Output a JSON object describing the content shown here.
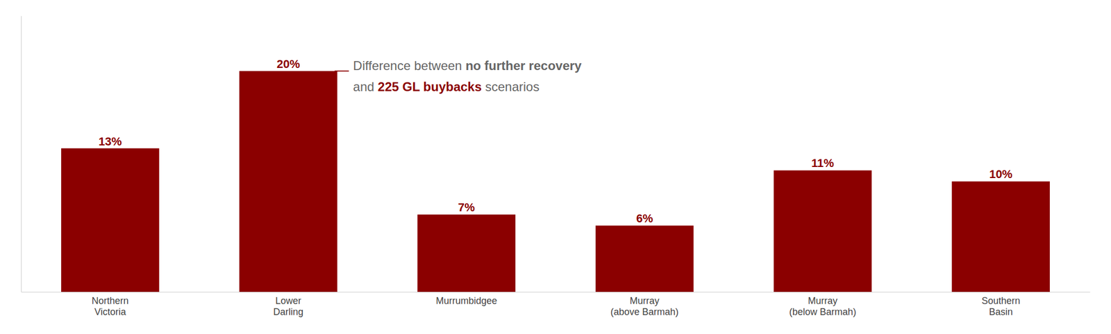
{
  "chart_data": {
    "type": "bar",
    "categories": [
      "Northern\nVictoria",
      "Lower\nDarling",
      "Murrumbidgee",
      "Murray\n(above Barmah)",
      "Murray\n(below Barmah)",
      "Southern\nBasin"
    ],
    "values": [
      13,
      20,
      7,
      6,
      11,
      10
    ],
    "value_labels": [
      "13%",
      "20%",
      "7%",
      "6%",
      "11%",
      "10%"
    ],
    "color": "#8B0000",
    "ylim": [
      0,
      25
    ],
    "data_labels": true,
    "tick_labels": "x",
    "grid": false,
    "annotations": [
      [
        {
          "text": "Difference between ",
          "color": "#666666"
        },
        {
          "text": "no further recovery",
          "color": "#666666"
        }
      ],
      [
        {
          "text": "and ",
          "color": "#666666"
        },
        {
          "text": "225 GL buybacks",
          "color": "#8B0000"
        },
        {
          "text": " scenarios",
          "color": "#666666"
        }
      ]
    ]
  }
}
